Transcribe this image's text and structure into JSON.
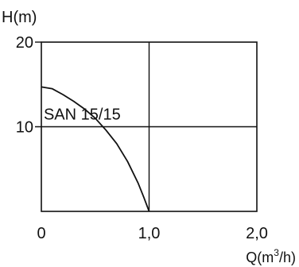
{
  "chart_data": {
    "type": "line",
    "ylabel": "H(m)",
    "xlabel_main": "Q(m",
    "xlabel_sup": "3",
    "xlabel_end": "/h)",
    "xlim": [
      0,
      2.0
    ],
    "ylim": [
      0,
      20
    ],
    "x_ticks": [
      {
        "value": 0,
        "label": "0"
      },
      {
        "value": 1.0,
        "label": "1,0"
      },
      {
        "value": 2.0,
        "label": "2,0"
      }
    ],
    "y_ticks": [
      {
        "value": 10,
        "label": "10"
      },
      {
        "value": 20,
        "label": "20"
      }
    ],
    "grid_x": [
      1.0
    ],
    "grid_y": [
      10
    ],
    "series": [
      {
        "name": "SAN 15/15",
        "x": [
          0,
          0.1,
          0.2,
          0.3,
          0.4,
          0.5,
          0.6,
          0.7,
          0.8,
          0.9,
          0.95,
          1.0
        ],
        "y": [
          14.7,
          14.5,
          13.8,
          13.0,
          12.1,
          11.0,
          9.6,
          8.0,
          5.9,
          3.3,
          1.7,
          0.0
        ]
      }
    ],
    "annotation": {
      "text": "SAN 15/15",
      "x": 0.76,
      "y": 11.5
    }
  }
}
